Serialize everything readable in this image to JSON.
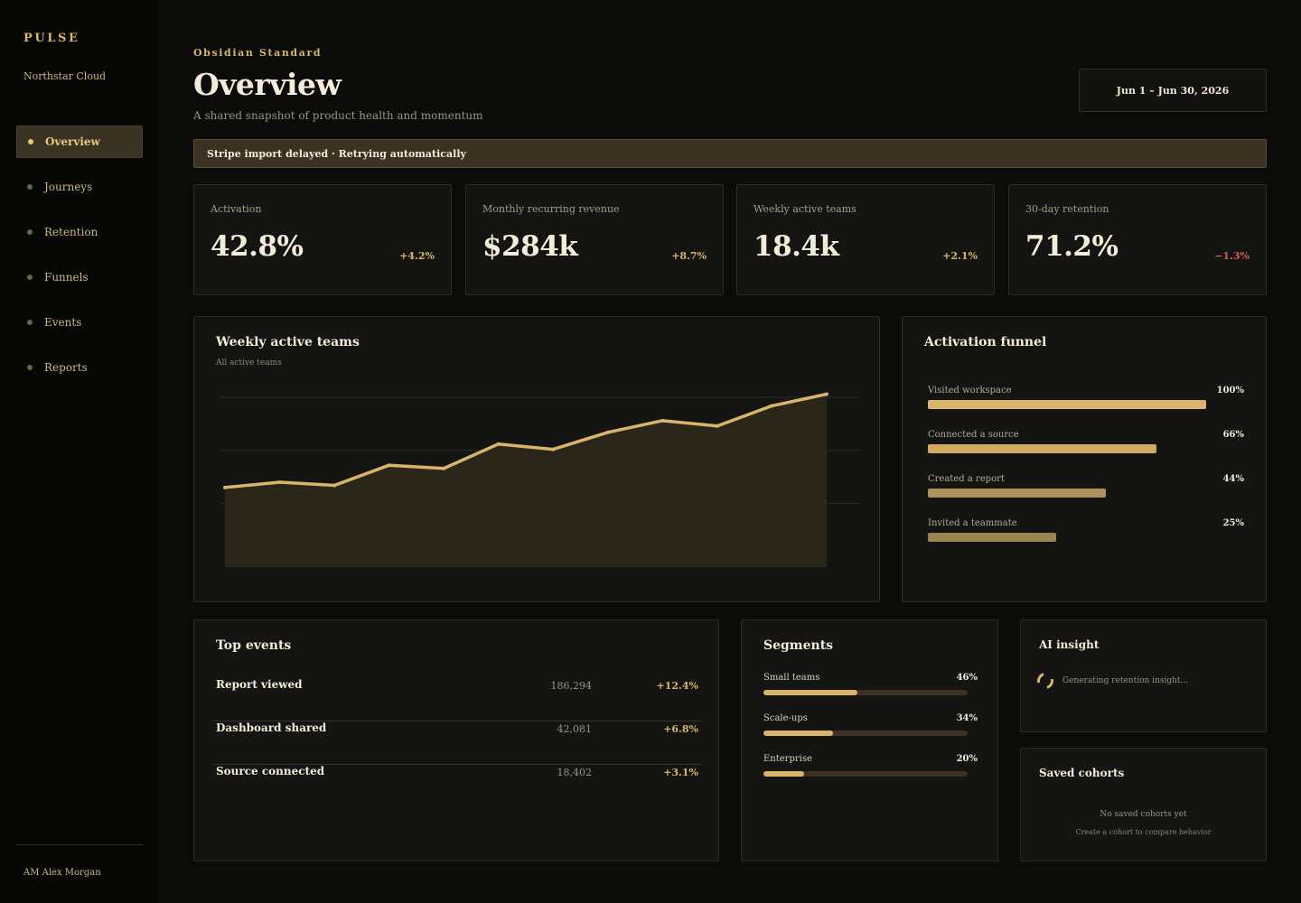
{
  "sidebar": {
    "brand": "PULSE",
    "workspace": "Northstar Cloud",
    "items": [
      {
        "label": "Overview",
        "active": true
      },
      {
        "label": "Journeys"
      },
      {
        "label": "Retention"
      },
      {
        "label": "Funnels"
      },
      {
        "label": "Events"
      },
      {
        "label": "Reports"
      }
    ],
    "user": "AM Alex Morgan"
  },
  "header": {
    "eyebrow": "Obsidian Standard",
    "title": "Overview",
    "subtitle": "A shared snapshot of product health and momentum",
    "date_range": "Jun 1 – Jun 30, 2026"
  },
  "alert": {
    "text": "Stripe import delayed · Retrying automatically"
  },
  "kpis": [
    {
      "label": "Activation",
      "value": "42.8%",
      "delta": "+4.2%",
      "trend": "up"
    },
    {
      "label": "Monthly recurring revenue",
      "value": "$284k",
      "delta": "+8.7%",
      "trend": "up"
    },
    {
      "label": "Weekly active teams",
      "value": "18.4k",
      "delta": "+2.1%",
      "trend": "up"
    },
    {
      "label": "30-day retention",
      "value": "71.2%",
      "delta": "−1.3%",
      "trend": "down"
    }
  ],
  "wat_chart": {
    "title": "Weekly active teams",
    "subtitle": "All active teams"
  },
  "chart_data": {
    "type": "area",
    "title": "Weekly active teams",
    "subtitle": "All active teams",
    "x": [
      1,
      2,
      3,
      4,
      5,
      6,
      7,
      8,
      9,
      10,
      11,
      12
    ],
    "values": [
      11.5,
      12.0,
      11.7,
      13.6,
      13.3,
      15.6,
      15.1,
      16.7,
      17.8,
      17.3,
      19.2,
      20.3
    ],
    "ylim": [
      4,
      24
    ],
    "grid": true,
    "colors": {
      "line": "#d9b56a",
      "fill": "#2a2619",
      "grid": "#2b2b26"
    }
  },
  "funnel": {
    "title": "Activation funnel",
    "steps": [
      {
        "label": "Visited workspace",
        "pct": "100%",
        "value": 100,
        "color": "#d9b56a"
      },
      {
        "label": "Connected a source",
        "pct": "66%",
        "value": 82,
        "color": "#cfac62"
      },
      {
        "label": "Created a report",
        "pct": "44%",
        "value": 64,
        "color": "#ad915a"
      },
      {
        "label": "Invited a teammate",
        "pct": "25%",
        "value": 46,
        "color": "#9c8450"
      }
    ]
  },
  "top_events": {
    "title": "Top events",
    "rows": [
      {
        "name": "Report viewed",
        "count": "186,294",
        "delta": "+12.4%"
      },
      {
        "name": "Dashboard shared",
        "count": "42,081",
        "delta": "+6.8%"
      },
      {
        "name": "Source connected",
        "count": "18,402",
        "delta": "+3.1%"
      }
    ]
  },
  "segments": {
    "title": "Segments",
    "rows": [
      {
        "label": "Small teams",
        "pct": "46%",
        "value": 46
      },
      {
        "label": "Scale-ups",
        "pct": "34%",
        "value": 34
      },
      {
        "label": "Enterprise",
        "pct": "20%",
        "value": 20
      }
    ]
  },
  "ai_insight": {
    "title": "AI insight",
    "status": "Generating retention insight..."
  },
  "saved_cohorts": {
    "title": "Saved cohorts",
    "empty_title": "No saved cohorts yet",
    "empty_sub": "Create a cohort to compare behavior"
  }
}
